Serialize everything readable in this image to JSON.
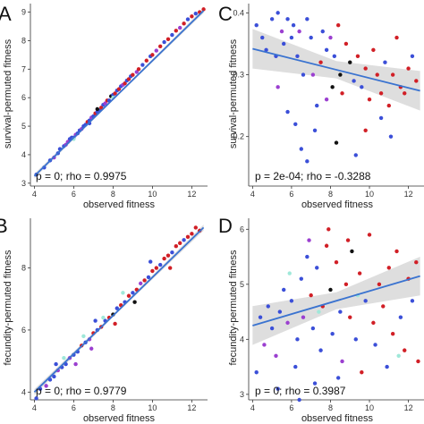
{
  "chart_data": [
    {
      "panel": "A",
      "type": "scatter",
      "xlabel": "observed fitness",
      "ylabel": "survival-permuted fitness",
      "annotation": "p = 0; rho = 0.9975",
      "xlim": [
        3.8,
        12.8
      ],
      "ylim": [
        2.9,
        9.3
      ],
      "xticks": [
        4,
        6,
        8,
        10,
        12
      ],
      "yticks": [
        3,
        4,
        5,
        6,
        7,
        8,
        9
      ],
      "grid": false,
      "legend": "none",
      "trend": {
        "x": [
          4.0,
          12.6
        ],
        "y": [
          3.25,
          9.05
        ],
        "band": 0.05
      },
      "points": [
        [
          4.1,
          3.3,
          "b"
        ],
        [
          4.5,
          3.55,
          "b"
        ],
        [
          4.8,
          3.8,
          "b"
        ],
        [
          5.0,
          3.9,
          "m"
        ],
        [
          5.2,
          4.05,
          "b"
        ],
        [
          5.3,
          4.2,
          "b"
        ],
        [
          5.5,
          4.3,
          "b"
        ],
        [
          5.6,
          4.35,
          "m"
        ],
        [
          5.8,
          4.55,
          "b"
        ],
        [
          5.9,
          4.6,
          "b"
        ],
        [
          6.0,
          4.6,
          "b"
        ],
        [
          6.1,
          4.7,
          "m"
        ],
        [
          6.2,
          4.75,
          "b"
        ],
        [
          6.3,
          4.85,
          "b"
        ],
        [
          6.4,
          4.9,
          "m"
        ],
        [
          6.5,
          5.0,
          "b"
        ],
        [
          6.6,
          5.05,
          "b"
        ],
        [
          6.7,
          5.15,
          "r"
        ],
        [
          6.8,
          5.2,
          "b"
        ],
        [
          6.9,
          5.3,
          "m"
        ],
        [
          7.0,
          5.35,
          "b"
        ],
        [
          7.1,
          5.45,
          "r"
        ],
        [
          7.2,
          5.5,
          "b"
        ],
        [
          7.3,
          5.55,
          "b"
        ],
        [
          7.4,
          5.65,
          "r"
        ],
        [
          7.5,
          5.75,
          "b"
        ],
        [
          7.6,
          5.8,
          "m"
        ],
        [
          7.7,
          5.9,
          "r"
        ],
        [
          7.8,
          5.9,
          "b"
        ],
        [
          7.9,
          6.05,
          "k"
        ],
        [
          8.0,
          6.1,
          "b"
        ],
        [
          8.1,
          6.15,
          "r"
        ],
        [
          8.2,
          6.25,
          "b"
        ],
        [
          8.3,
          6.3,
          "r"
        ],
        [
          8.4,
          6.4,
          "b"
        ],
        [
          8.5,
          6.45,
          "m"
        ],
        [
          8.6,
          6.5,
          "r"
        ],
        [
          8.7,
          6.6,
          "b"
        ],
        [
          8.8,
          6.65,
          "r"
        ],
        [
          8.9,
          6.75,
          "b"
        ],
        [
          9.0,
          6.8,
          "r"
        ],
        [
          9.2,
          6.9,
          "m"
        ],
        [
          9.3,
          7.0,
          "r"
        ],
        [
          9.5,
          7.15,
          "b"
        ],
        [
          9.7,
          7.3,
          "r"
        ],
        [
          9.9,
          7.45,
          "b"
        ],
        [
          10.0,
          7.5,
          "r"
        ],
        [
          10.2,
          7.65,
          "m"
        ],
        [
          10.4,
          7.8,
          "r"
        ],
        [
          10.6,
          7.95,
          "b"
        ],
        [
          10.8,
          8.05,
          "r"
        ],
        [
          11.0,
          8.2,
          "b"
        ],
        [
          11.2,
          8.35,
          "r"
        ],
        [
          11.4,
          8.45,
          "m"
        ],
        [
          11.6,
          8.6,
          "r"
        ],
        [
          11.8,
          8.75,
          "b"
        ],
        [
          12.0,
          8.85,
          "r"
        ],
        [
          12.2,
          8.95,
          "b"
        ],
        [
          12.4,
          9.0,
          "r"
        ],
        [
          12.6,
          9.1,
          "r"
        ],
        [
          7.2,
          5.6,
          "k"
        ],
        [
          6.0,
          4.55,
          "c"
        ],
        [
          8.0,
          6.0,
          "c"
        ],
        [
          5.7,
          4.45,
          "m"
        ],
        [
          6.8,
          5.1,
          "b"
        ]
      ]
    },
    {
      "panel": "C",
      "type": "scatter",
      "xlabel": "observed fitness",
      "ylabel": "survival-permuted fitness",
      "annotation": "p = 2e-04; rho = -0.3288",
      "xlim": [
        3.8,
        12.8
      ],
      "ylim": [
        0.12,
        0.415
      ],
      "xticks": [
        4,
        6,
        8,
        10,
        12
      ],
      "yticks": [
        0.2,
        0.3,
        0.4
      ],
      "grid": false,
      "legend": "none",
      "trend": {
        "x": [
          4.0,
          12.6
        ],
        "y": [
          0.342,
          0.274
        ],
        "band": 0.02
      },
      "points": [
        [
          4.2,
          0.38,
          "b"
        ],
        [
          4.5,
          0.36,
          "b"
        ],
        [
          4.7,
          0.34,
          "b"
        ],
        [
          5.0,
          0.39,
          "b"
        ],
        [
          5.2,
          0.33,
          "b"
        ],
        [
          5.3,
          0.4,
          "b"
        ],
        [
          5.5,
          0.37,
          "m"
        ],
        [
          5.6,
          0.35,
          "b"
        ],
        [
          5.8,
          0.39,
          "b"
        ],
        [
          6.0,
          0.36,
          "b"
        ],
        [
          6.1,
          0.38,
          "b"
        ],
        [
          6.3,
          0.33,
          "b"
        ],
        [
          6.4,
          0.37,
          "m"
        ],
        [
          6.6,
          0.3,
          "b"
        ],
        [
          6.8,
          0.39,
          "b"
        ],
        [
          7.0,
          0.36,
          "b"
        ],
        [
          7.1,
          0.3,
          "m"
        ],
        [
          7.3,
          0.25,
          "b"
        ],
        [
          7.5,
          0.32,
          "r"
        ],
        [
          7.6,
          0.37,
          "b"
        ],
        [
          7.8,
          0.34,
          "b"
        ],
        [
          8.0,
          0.36,
          "m"
        ],
        [
          8.1,
          0.28,
          "k"
        ],
        [
          8.2,
          0.33,
          "b"
        ],
        [
          8.4,
          0.38,
          "r"
        ],
        [
          8.5,
          0.3,
          "k"
        ],
        [
          8.6,
          0.27,
          "r"
        ],
        [
          8.8,
          0.35,
          "r"
        ],
        [
          9.0,
          0.32,
          "k"
        ],
        [
          9.2,
          0.29,
          "b"
        ],
        [
          9.4,
          0.33,
          "r"
        ],
        [
          9.6,
          0.28,
          "b"
        ],
        [
          9.8,
          0.31,
          "r"
        ],
        [
          10.0,
          0.26,
          "r"
        ],
        [
          10.2,
          0.34,
          "r"
        ],
        [
          10.4,
          0.3,
          "r"
        ],
        [
          10.6,
          0.27,
          "r"
        ],
        [
          10.8,
          0.32,
          "b"
        ],
        [
          11.0,
          0.25,
          "r"
        ],
        [
          11.2,
          0.3,
          "r"
        ],
        [
          11.4,
          0.36,
          "r"
        ],
        [
          11.6,
          0.28,
          "r"
        ],
        [
          11.8,
          0.27,
          "r"
        ],
        [
          12.0,
          0.31,
          "r"
        ],
        [
          12.2,
          0.33,
          "b"
        ],
        [
          12.4,
          0.29,
          "r"
        ],
        [
          6.5,
          0.18,
          "b"
        ],
        [
          6.8,
          0.16,
          "b"
        ],
        [
          7.2,
          0.21,
          "b"
        ],
        [
          8.3,
          0.19,
          "k"
        ],
        [
          9.3,
          0.17,
          "b"
        ],
        [
          5.8,
          0.24,
          "b"
        ],
        [
          10.6,
          0.23,
          "b"
        ],
        [
          7.8,
          0.26,
          "m"
        ],
        [
          5.3,
          0.28,
          "m"
        ],
        [
          9.8,
          0.21,
          "r"
        ],
        [
          11.1,
          0.2,
          "b"
        ],
        [
          6.2,
          0.22,
          "b"
        ]
      ]
    },
    {
      "panel": "B",
      "type": "scatter",
      "xlabel": "observed fitness",
      "ylabel": "fecundity-permuted fitness",
      "annotation": "p = 0; rho = 0.9779",
      "xlim": [
        3.8,
        12.8
      ],
      "ylim": [
        3.75,
        9.6
      ],
      "xticks": [
        4,
        6,
        8,
        10,
        12
      ],
      "yticks": [
        4,
        6,
        8
      ],
      "grid": false,
      "legend": "none",
      "trend": {
        "x": [
          4.0,
          12.6
        ],
        "y": [
          4.0,
          9.3
        ],
        "band": 0.06
      },
      "points": [
        [
          4.1,
          3.8,
          "b"
        ],
        [
          4.3,
          4.1,
          "b"
        ],
        [
          4.6,
          4.2,
          "m"
        ],
        [
          4.8,
          4.4,
          "b"
        ],
        [
          5.0,
          4.5,
          "b"
        ],
        [
          5.2,
          4.7,
          "m"
        ],
        [
          5.4,
          4.8,
          "b"
        ],
        [
          5.6,
          4.9,
          "b"
        ],
        [
          5.8,
          5.1,
          "m"
        ],
        [
          6.0,
          5.2,
          "b"
        ],
        [
          6.2,
          5.3,
          "b"
        ],
        [
          6.4,
          5.5,
          "r"
        ],
        [
          6.6,
          5.6,
          "b"
        ],
        [
          6.8,
          5.7,
          "m"
        ],
        [
          7.0,
          5.9,
          "r"
        ],
        [
          7.2,
          6.0,
          "b"
        ],
        [
          7.4,
          6.1,
          "r"
        ],
        [
          7.6,
          6.3,
          "b"
        ],
        [
          7.8,
          6.4,
          "r"
        ],
        [
          8.0,
          6.5,
          "k"
        ],
        [
          8.2,
          6.7,
          "b"
        ],
        [
          8.4,
          6.8,
          "r"
        ],
        [
          8.6,
          6.9,
          "b"
        ],
        [
          8.8,
          7.1,
          "r"
        ],
        [
          9.0,
          7.2,
          "b"
        ],
        [
          9.2,
          7.3,
          "r"
        ],
        [
          9.4,
          7.5,
          "m"
        ],
        [
          9.6,
          7.6,
          "r"
        ],
        [
          9.8,
          7.7,
          "b"
        ],
        [
          10.0,
          7.9,
          "r"
        ],
        [
          10.2,
          8.0,
          "r"
        ],
        [
          10.4,
          8.1,
          "b"
        ],
        [
          10.6,
          8.3,
          "r"
        ],
        [
          10.8,
          8.4,
          "r"
        ],
        [
          11.0,
          8.5,
          "b"
        ],
        [
          11.2,
          8.7,
          "r"
        ],
        [
          11.4,
          8.8,
          "r"
        ],
        [
          11.6,
          8.9,
          "b"
        ],
        [
          11.8,
          9.0,
          "r"
        ],
        [
          12.0,
          9.1,
          "r"
        ],
        [
          12.2,
          9.3,
          "r"
        ],
        [
          12.4,
          9.2,
          "r"
        ],
        [
          5.5,
          5.1,
          "c"
        ],
        [
          6.5,
          5.8,
          "c"
        ],
        [
          7.5,
          6.4,
          "c"
        ],
        [
          8.5,
          7.2,
          "c"
        ],
        [
          6.1,
          4.9,
          "m"
        ],
        [
          7.1,
          6.3,
          "b"
        ],
        [
          8.1,
          6.2,
          "r"
        ],
        [
          9.1,
          6.9,
          "k"
        ],
        [
          9.9,
          8.2,
          "b"
        ],
        [
          10.9,
          8.0,
          "r"
        ],
        [
          5.1,
          4.9,
          "b"
        ],
        [
          6.9,
          5.4,
          "m"
        ]
      ]
    },
    {
      "panel": "D",
      "type": "scatter",
      "xlabel": "observed fitness",
      "ylabel": "fecundity-permuted fitness",
      "annotation": "p = 0; rho = 0.3987",
      "xlim": [
        3.8,
        12.8
      ],
      "ylim": [
        2.9,
        6.2
      ],
      "xticks": [
        4,
        6,
        8,
        10,
        12
      ],
      "yticks": [
        3,
        4,
        5,
        6
      ],
      "grid": false,
      "legend": "none",
      "trend": {
        "x": [
          4.0,
          12.6
        ],
        "y": [
          4.25,
          5.15
        ],
        "band": 0.22
      },
      "points": [
        [
          4.2,
          3.4,
          "b"
        ],
        [
          4.4,
          4.4,
          "b"
        ],
        [
          4.6,
          3.9,
          "m"
        ],
        [
          4.8,
          4.6,
          "b"
        ],
        [
          5.0,
          4.2,
          "b"
        ],
        [
          5.2,
          3.7,
          "m"
        ],
        [
          5.4,
          4.5,
          "b"
        ],
        [
          5.6,
          4.9,
          "b"
        ],
        [
          5.8,
          4.3,
          "m"
        ],
        [
          6.0,
          4.7,
          "b"
        ],
        [
          6.2,
          3.5,
          "b"
        ],
        [
          6.3,
          4.0,
          "b"
        ],
        [
          6.5,
          5.1,
          "b"
        ],
        [
          6.6,
          4.4,
          "m"
        ],
        [
          6.8,
          5.5,
          "b"
        ],
        [
          7.0,
          4.8,
          "r"
        ],
        [
          7.1,
          4.2,
          "b"
        ],
        [
          7.3,
          5.3,
          "b"
        ],
        [
          7.5,
          3.8,
          "b"
        ],
        [
          7.6,
          4.6,
          "r"
        ],
        [
          7.8,
          5.7,
          "r"
        ],
        [
          8.0,
          4.9,
          "k"
        ],
        [
          8.1,
          4.1,
          "b"
        ],
        [
          8.3,
          5.4,
          "r"
        ],
        [
          8.5,
          4.5,
          "b"
        ],
        [
          8.6,
          3.6,
          "m"
        ],
        [
          8.8,
          5.0,
          "r"
        ],
        [
          9.0,
          4.4,
          "r"
        ],
        [
          9.1,
          5.6,
          "k"
        ],
        [
          9.3,
          4.0,
          "b"
        ],
        [
          9.5,
          5.2,
          "r"
        ],
        [
          9.6,
          3.4,
          "r"
        ],
        [
          9.8,
          4.7,
          "b"
        ],
        [
          10.0,
          5.9,
          "r"
        ],
        [
          10.2,
          4.3,
          "r"
        ],
        [
          10.3,
          3.9,
          "b"
        ],
        [
          10.5,
          5.0,
          "r"
        ],
        [
          10.7,
          4.6,
          "r"
        ],
        [
          10.9,
          3.5,
          "b"
        ],
        [
          11.0,
          5.3,
          "r"
        ],
        [
          11.2,
          4.1,
          "r"
        ],
        [
          11.4,
          5.6,
          "r"
        ],
        [
          11.6,
          4.4,
          "b"
        ],
        [
          11.8,
          3.8,
          "r"
        ],
        [
          12.0,
          5.1,
          "r"
        ],
        [
          12.2,
          4.7,
          "b"
        ],
        [
          12.4,
          5.4,
          "r"
        ],
        [
          12.5,
          3.6,
          "r"
        ],
        [
          5.3,
          3.1,
          "b"
        ],
        [
          6.4,
          2.9,
          "b"
        ],
        [
          7.2,
          3.2,
          "b"
        ],
        [
          8.4,
          3.3,
          "b"
        ],
        [
          7.9,
          6.0,
          "r"
        ],
        [
          8.9,
          5.8,
          "r"
        ],
        [
          5.9,
          5.2,
          "c"
        ],
        [
          7.4,
          4.5,
          "c"
        ],
        [
          9.4,
          4.8,
          "c"
        ],
        [
          11.5,
          3.7,
          "c"
        ],
        [
          6.9,
          5.8,
          "m"
        ]
      ]
    }
  ],
  "colors": {
    "b": "#3b4fd8",
    "r": "#d11f26",
    "m": "#9b3fd0",
    "k": "#111111",
    "c": "#9fe8d9",
    "trend": "#3a73d0",
    "band": "#c8c8c8"
  }
}
